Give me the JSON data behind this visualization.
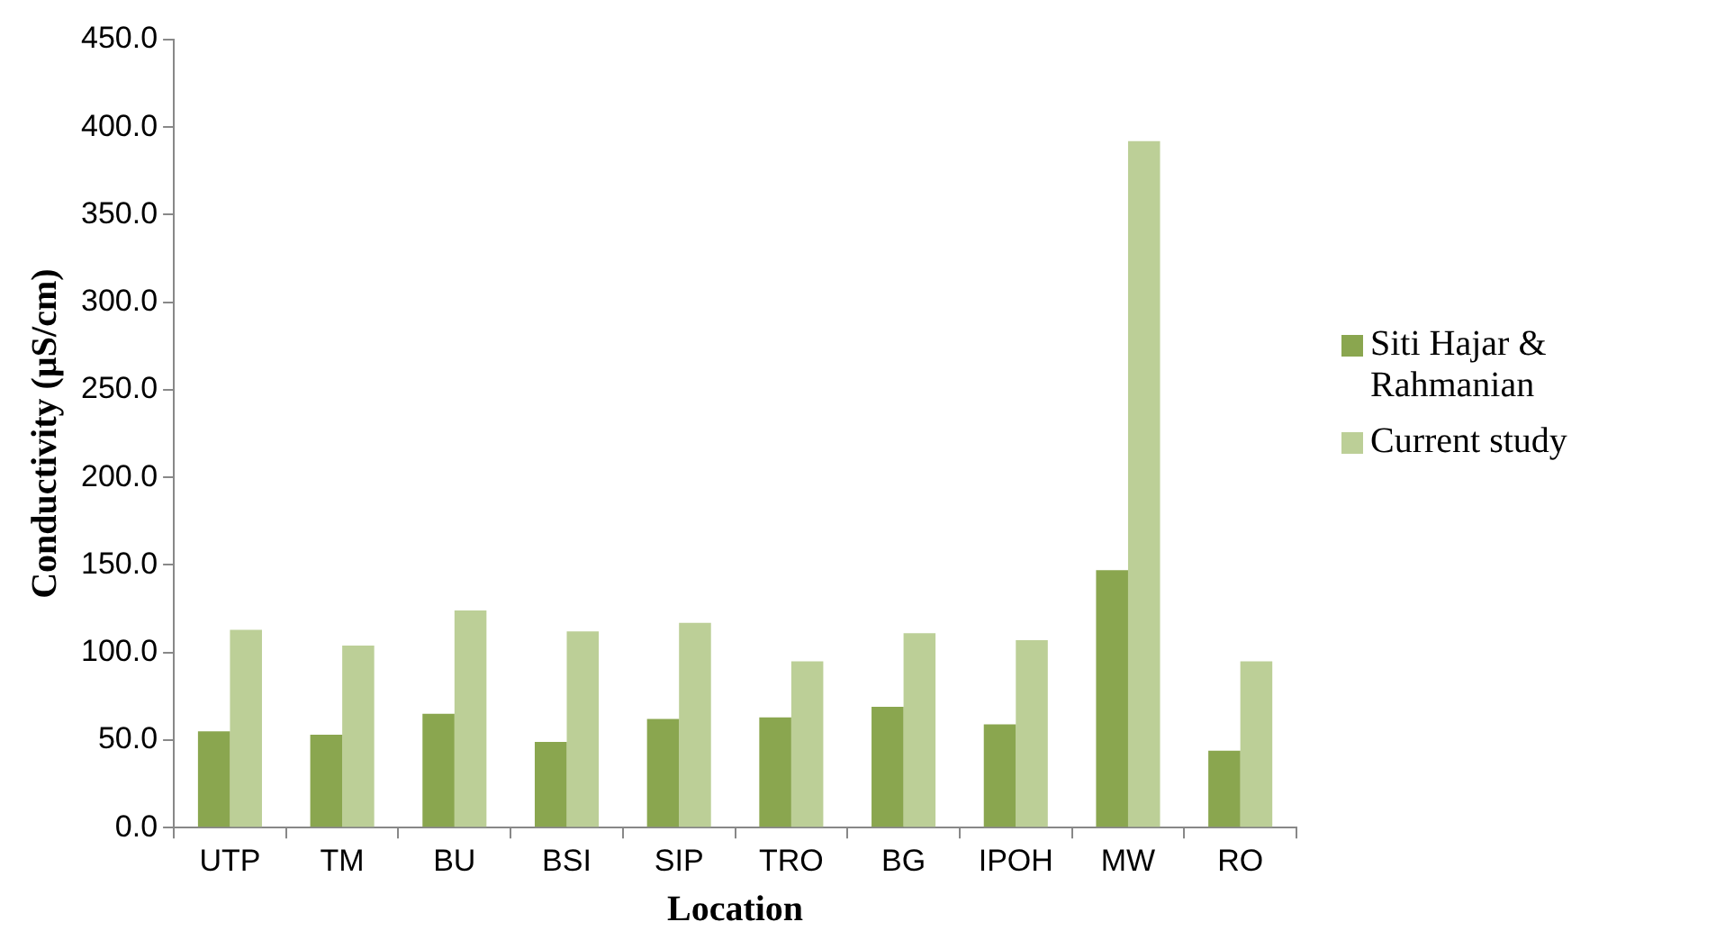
{
  "chart_data": {
    "type": "bar",
    "xlabel": "Location",
    "ylabel": "Conductivity (µS/cm)",
    "categories": [
      "UTP",
      "TM",
      "BU",
      "BSI",
      "SIP",
      "TRO",
      "BG",
      "IPOH",
      "MW",
      "RO"
    ],
    "series": [
      {
        "name": "Siti Hajar & Rahmanian",
        "color": "#8aa64f",
        "values": [
          55,
          53,
          65,
          49,
          62,
          63,
          69,
          59,
          147,
          44
        ]
      },
      {
        "name": "Current study",
        "color": "#bccf97",
        "values": [
          113,
          104,
          124,
          112,
          117,
          95,
          111,
          107,
          392,
          95
        ]
      }
    ],
    "ylim": [
      0,
      450
    ],
    "yticks": [
      {
        "value": 0,
        "label": "0.0"
      },
      {
        "value": 50,
        "label": "50.0"
      },
      {
        "value": 100,
        "label": "100.0"
      },
      {
        "value": 150,
        "label": "150.0"
      },
      {
        "value": 200,
        "label": "200.0"
      },
      {
        "value": 250,
        "label": "250.0"
      },
      {
        "value": 300,
        "label": "300.0"
      },
      {
        "value": 350,
        "label": "350.0"
      },
      {
        "value": 400,
        "label": "400.0"
      },
      {
        "value": 450,
        "label": "450.0"
      }
    ],
    "grid": false,
    "legend": "right"
  }
}
